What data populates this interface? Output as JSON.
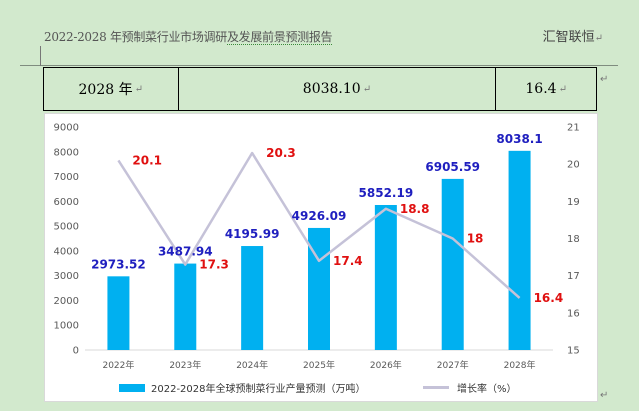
{
  "document": {
    "header_title_prefix": "2022-2028 年预制菜行业市场调研",
    "header_title_suffix": "及发展前景预测报告",
    "header_right": "汇智联恒",
    "para_mark": "↵",
    "table_row": {
      "year": "2028 年",
      "value": "8038.10",
      "rate": "16.4"
    }
  },
  "chart_data": {
    "type": "bar",
    "categories": [
      "2022年",
      "2023年",
      "2024年",
      "2025年",
      "2026年",
      "2027年",
      "2028年"
    ],
    "series": [
      {
        "name": "2022-2028年全球预制菜行业产量预测（万吨）",
        "type": "bar",
        "axis": "left",
        "values": [
          2973.52,
          3487.94,
          4195.99,
          4926.09,
          5852.19,
          6905.59,
          8038.1
        ],
        "labels": [
          "2973.52",
          "3487.94",
          "4195.99",
          "4926.09",
          "5852.19",
          "6905.59",
          "8038.1"
        ],
        "color": "#00b0f0",
        "label_color": "#1f1fbf"
      },
      {
        "name": "增长率（%）",
        "type": "line",
        "axis": "right",
        "values": [
          20.1,
          17.3,
          20.3,
          17.4,
          18.8,
          18,
          16.4
        ],
        "labels": [
          "20.1",
          "17.3",
          "20.3",
          "17.4",
          "18.8",
          "18",
          "16.4"
        ],
        "color": "#c5c2d8",
        "label_color": "#e01010"
      }
    ],
    "y_left": {
      "min": 0,
      "max": 9000,
      "step": 1000,
      "ticks": [
        "0",
        "1000",
        "2000",
        "3000",
        "4000",
        "5000",
        "6000",
        "7000",
        "8000",
        "9000"
      ]
    },
    "y_right": {
      "min": 15,
      "max": 21,
      "step": 1,
      "ticks": [
        "15",
        "16",
        "17",
        "18",
        "19",
        "20",
        "21"
      ]
    },
    "grid": false,
    "legend_position": "bottom"
  }
}
